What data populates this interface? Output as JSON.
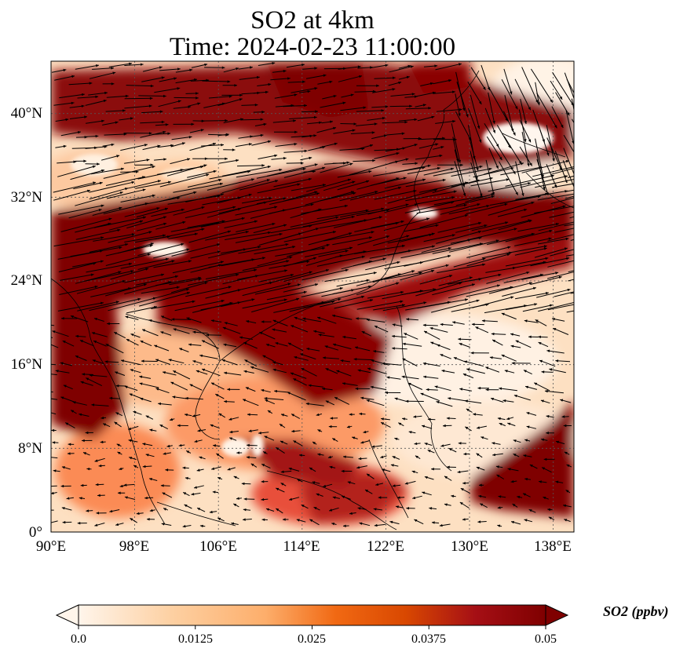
{
  "title": {
    "line1": "SO2 at 4km",
    "line2": "Time: 2024-02-23 11:00:00"
  },
  "map": {
    "region": "Southeast / East Asia",
    "lon_range": [
      90,
      140
    ],
    "lat_range": [
      0,
      45
    ],
    "lat_ticks": [
      {
        "value": 0,
        "label": "0°"
      },
      {
        "value": 8,
        "label": "8°N"
      },
      {
        "value": 16,
        "label": "16°N"
      },
      {
        "value": 24,
        "label": "24°N"
      },
      {
        "value": 32,
        "label": "32°N"
      },
      {
        "value": 40,
        "label": "40°N"
      }
    ],
    "lon_ticks": [
      {
        "value": 90,
        "label": "90°E"
      },
      {
        "value": 98,
        "label": "98°E"
      },
      {
        "value": 106,
        "label": "106°E"
      },
      {
        "value": 114,
        "label": "114°E"
      },
      {
        "value": 122,
        "label": "122°E"
      },
      {
        "value": 130,
        "label": "130°E"
      },
      {
        "value": 138,
        "label": "138°E"
      }
    ],
    "gridlines": "dotted",
    "overlay": "wind vectors"
  },
  "colorbar": {
    "label": "SO2 (ppbv)",
    "ticks": [
      "0.0",
      "0.0125",
      "0.025",
      "0.0375",
      "0.05"
    ],
    "range": [
      0,
      0.05
    ],
    "extend": "both",
    "colormap": [
      "#fff5eb",
      "#fdd0a2",
      "#fdae6b",
      "#f16913",
      "#d94801",
      "#a50f15",
      "#7f0000"
    ]
  }
}
